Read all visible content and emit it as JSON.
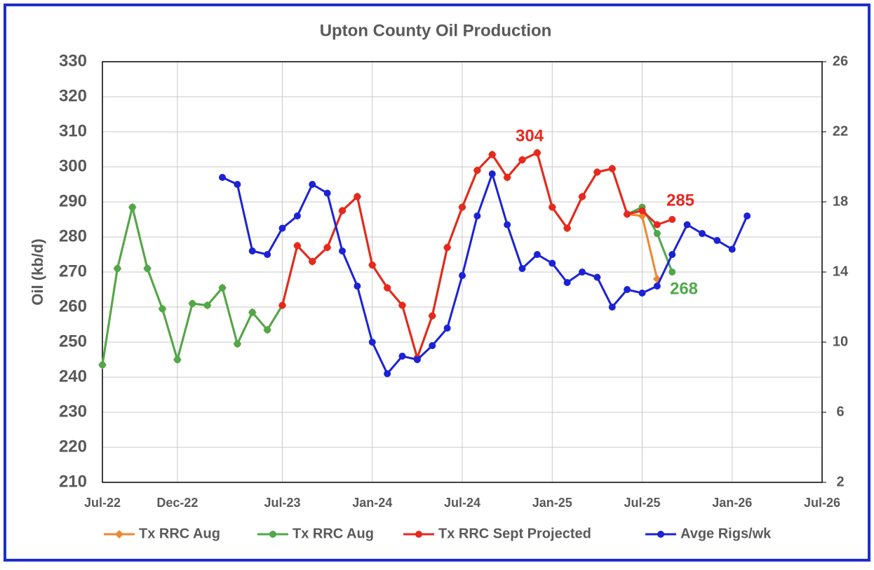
{
  "chart_data": {
    "type": "line",
    "title": "Upton County Oil Production",
    "y_label": "Oil (kb/d)",
    "x": [
      0,
      1,
      2,
      3,
      4,
      5,
      6,
      7,
      8,
      9,
      10,
      11,
      12,
      13,
      14,
      15,
      16,
      17,
      18,
      19,
      20,
      21,
      22,
      23,
      24,
      25,
      26,
      27,
      28,
      29,
      30,
      31,
      32,
      33,
      34,
      35,
      36,
      37,
      38,
      39,
      40,
      41,
      42,
      43
    ],
    "xlim": [
      0,
      48
    ],
    "xticks": [
      {
        "value": 0,
        "label": "Jul-22"
      },
      {
        "value": 5,
        "label": "Dec-22"
      },
      {
        "value": 12,
        "label": "Jul-23"
      },
      {
        "value": 18,
        "label": "Jan-24"
      },
      {
        "value": 24,
        "label": "Jul-24"
      },
      {
        "value": 30,
        "label": "Jan-25"
      },
      {
        "value": 36,
        "label": "Jul-25"
      },
      {
        "value": 42,
        "label": "Jan-26"
      },
      {
        "value": 48,
        "label": "Jul-26"
      }
    ],
    "ylim": [
      210,
      330
    ],
    "yticks": [
      210,
      220,
      230,
      240,
      250,
      260,
      270,
      280,
      290,
      300,
      310,
      320,
      330
    ],
    "y2lim": [
      2,
      26
    ],
    "y2ticks": [
      2,
      6,
      10,
      14,
      18,
      22,
      26
    ],
    "grid": true,
    "legend": "bottom",
    "series": [
      {
        "name": "Tx RRC Aug",
        "color": "#f0872d",
        "marker": "diamond",
        "values": [
          243.5,
          271,
          288.5,
          271,
          259.5,
          245,
          261,
          260.5,
          265.5,
          249.5,
          258.5,
          253.5,
          260.5,
          277.5,
          273,
          277,
          287.5,
          291.5,
          272,
          265.5,
          260.5,
          245.5,
          257.5,
          277,
          288.5,
          299,
          303.5,
          297,
          302,
          304,
          288.5,
          282.5,
          291.5,
          298.5,
          299.5,
          286.5,
          286,
          268,
          null,
          null,
          null,
          null,
          null,
          null
        ]
      },
      {
        "name": "Tx RRC Aug",
        "color": "#4fa84a",
        "marker": "circle",
        "values": [
          243.5,
          271,
          288.5,
          271,
          259.5,
          245,
          261,
          260.5,
          265.5,
          249.5,
          258.5,
          253.5,
          260.5,
          277.5,
          273,
          277,
          287.5,
          291.5,
          272,
          265.5,
          260.5,
          245.5,
          257.5,
          277,
          288.5,
          299,
          303.5,
          297,
          302,
          304,
          288.5,
          282.5,
          291.5,
          298.5,
          299.5,
          286.5,
          288.5,
          281,
          270,
          null,
          null,
          null,
          null,
          null
        ]
      },
      {
        "name": "Tx RRC Sept Projected",
        "color": "#e8281e",
        "marker": "circle",
        "values": [
          null,
          null,
          null,
          null,
          null,
          null,
          null,
          null,
          null,
          null,
          null,
          null,
          260.5,
          277.5,
          273,
          277,
          287.5,
          291.5,
          272,
          265.5,
          260.5,
          245.5,
          257.5,
          277,
          288.5,
          299,
          303.5,
          297,
          302,
          304,
          288.5,
          282.5,
          291.5,
          298.5,
          299.5,
          286.5,
          287.5,
          283.5,
          285,
          null,
          null,
          null,
          null,
          null
        ]
      },
      {
        "name": "Avge Rigs/wk",
        "color": "#1c22d6",
        "marker": "circle",
        "axis": "y2",
        "values": [
          null,
          null,
          null,
          null,
          null,
          null,
          null,
          null,
          19.4,
          19.0,
          15.2,
          15.0,
          16.5,
          17.2,
          19.0,
          18.5,
          15.2,
          13.2,
          10.0,
          8.2,
          9.2,
          9.0,
          9.8,
          10.8,
          13.8,
          17.2,
          19.6,
          16.7,
          14.2,
          15.0,
          14.5,
          13.4,
          14.0,
          13.7,
          12.0,
          13.0,
          12.8,
          13.2,
          15.0,
          16.7,
          16.2,
          15.8,
          15.3,
          17.2
        ]
      }
    ],
    "annotations": [
      {
        "text": "304",
        "color": "#e8281e"
      },
      {
        "text": "285",
        "color": "#e8281e"
      },
      {
        "text": "268",
        "color": "#4fa84a"
      }
    ]
  }
}
